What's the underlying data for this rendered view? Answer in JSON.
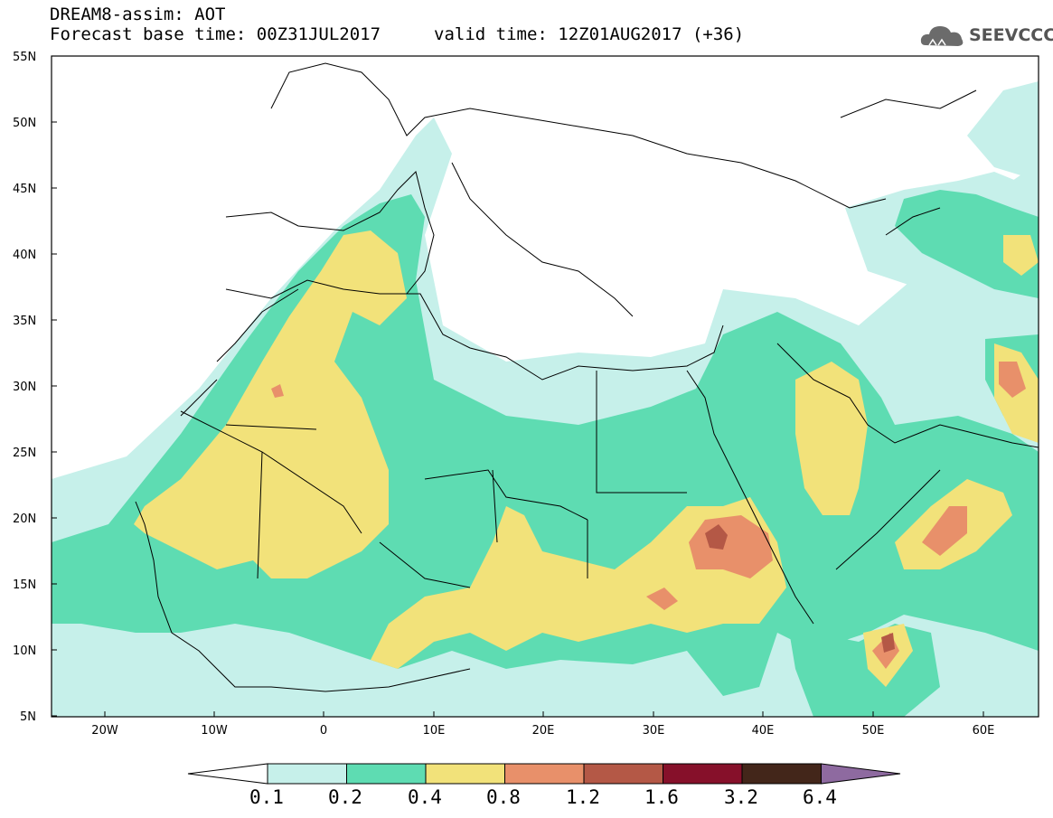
{
  "header": {
    "line1": "DREAM8-assim: AOT",
    "line2": "Forecast base time: 00Z31JUL2017",
    "line3": "valid time: 12Z01AUG2017 (+36)"
  },
  "logo": {
    "text": "SEEVCCC"
  },
  "axes": {
    "lat_labels": [
      "55N",
      "50N",
      "45N",
      "40N",
      "35N",
      "30N",
      "25N",
      "20N",
      "15N",
      "10N",
      "5N"
    ],
    "lon_labels": [
      "20W",
      "10W",
      "0",
      "10E",
      "20E",
      "30E",
      "40E",
      "50E",
      "60E"
    ]
  },
  "colorbar": {
    "labels": [
      "0.1",
      "0.2",
      "0.4",
      "0.8",
      "1.2",
      "1.6",
      "3.2",
      "6.4"
    ],
    "colors": [
      "#c6f0ea",
      "#5edcb2",
      "#f2e27a",
      "#e8906a",
      "#b45846",
      "#86102a",
      "#43261a",
      "#8e6aa0"
    ]
  },
  "colors": {
    "level_0_1": "#c6f0ea",
    "level_0_2": "#5edcb2",
    "level_0_4": "#f2e27a",
    "level_0_8": "#e8906a",
    "level_1_2": "#b45846",
    "borders": "#000000"
  }
}
